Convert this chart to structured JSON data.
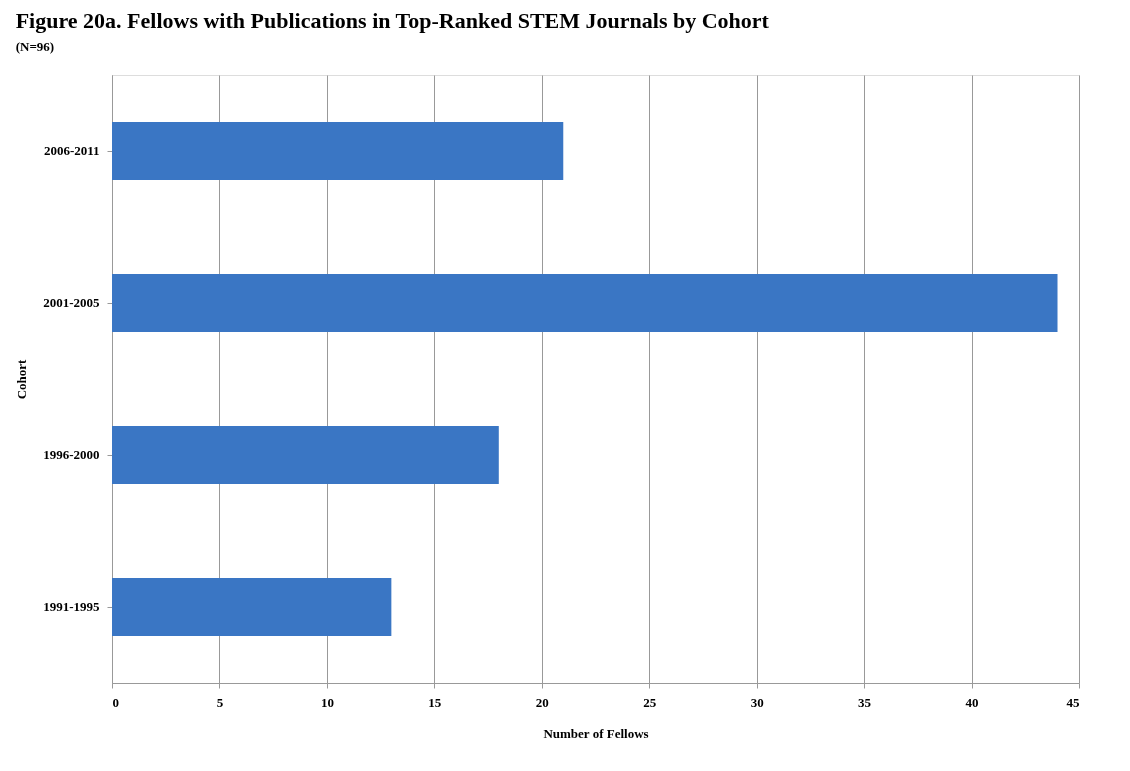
{
  "chart_data": {
    "type": "bar",
    "orientation": "horizontal",
    "title": "Figure 20a. Fellows with Publications in Top-Ranked STEM Journals by Cohort",
    "subtitle": "(N=96)",
    "categories": [
      "2006-2011",
      "2001-2005",
      "1996-2000",
      "1991-1995"
    ],
    "values": [
      21,
      44,
      18,
      13
    ],
    "color": "#3a76c4",
    "xlim": [
      0,
      45
    ],
    "xticks": [
      0,
      5,
      10,
      15,
      20,
      25,
      30,
      35,
      40,
      45
    ],
    "xlabel": "Number of Fellows",
    "ylabel": "Cohort",
    "grid": "x"
  }
}
